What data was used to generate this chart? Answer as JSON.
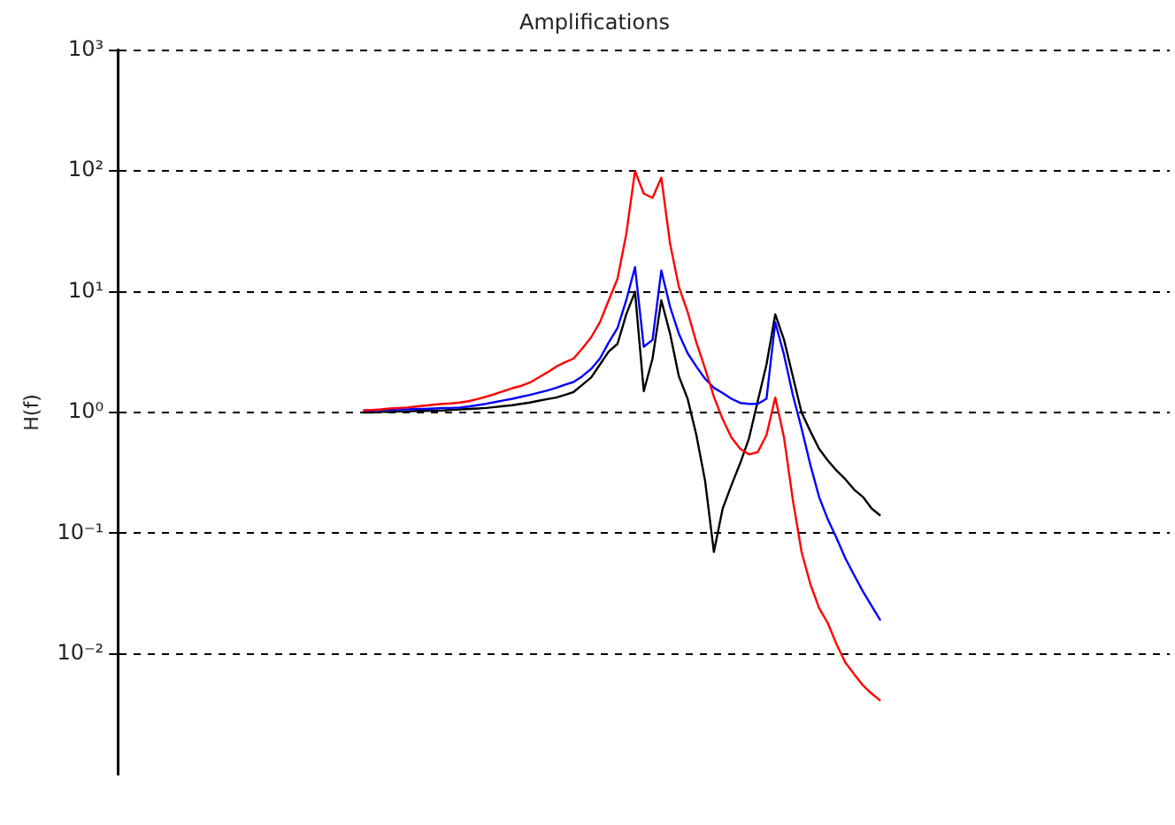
{
  "chart_data": {
    "type": "line",
    "title": "Amplifications",
    "ylabel": "H(f)",
    "log": "y",
    "grid": "y",
    "legend": false,
    "marker": "none",
    "categories": [
      null,
      null,
      null,
      null,
      null,
      null,
      null,
      null,
      null,
      null,
      null,
      null,
      null,
      null,
      null,
      null,
      null,
      null,
      null,
      null,
      null,
      null,
      null,
      null,
      null,
      null,
      null,
      null,
      null,
      null,
      null,
      null,
      null,
      null,
      null,
      null,
      null,
      null,
      null,
      null,
      null,
      null,
      null,
      null,
      null,
      null,
      null,
      null,
      null,
      null,
      null,
      null,
      null,
      null,
      null,
      null,
      null,
      null,
      null,
      null,
      null,
      null,
      null,
      null,
      null,
      null,
      null,
      null,
      null,
      null,
      null,
      null,
      null,
      null,
      null,
      null,
      null,
      null,
      null,
      null,
      null,
      null,
      null,
      null,
      null,
      null,
      null,
      null,
      null,
      null,
      null,
      null,
      null,
      null,
      null,
      null,
      null,
      null,
      null,
      null,
      null,
      null,
      null,
      null,
      null,
      null,
      null,
      null,
      null,
      null,
      null,
      null,
      null,
      null,
      null,
      null,
      null,
      null,
      null,
      null,
      null
    ],
    "ylim": [
      0.001,
      1000
    ],
    "yticks": [
      {
        "value": 0.01,
        "label": "10⁻²"
      },
      {
        "value": 0.1,
        "label": "10⁻¹"
      },
      {
        "value": 1,
        "label": "10⁰"
      },
      {
        "value": 10,
        "label": "10¹"
      },
      {
        "value": 100,
        "label": "10²"
      },
      {
        "value": 1000,
        "label": "10³"
      }
    ],
    "series": [
      {
        "color": "#ff0000",
        "values": [
          null,
          null,
          null,
          null,
          null,
          null,
          null,
          null,
          null,
          null,
          null,
          null,
          null,
          null,
          null,
          null,
          null,
          null,
          null,
          null,
          null,
          null,
          null,
          null,
          null,
          null,
          null,
          null,
          1.04,
          1.05,
          1.06,
          1.08,
          1.09,
          1.1,
          1.12,
          1.14,
          1.16,
          1.18,
          1.19,
          1.21,
          1.24,
          1.29,
          1.35,
          1.42,
          1.5,
          1.59,
          1.66,
          1.77,
          1.95,
          2.15,
          2.4,
          2.6,
          2.8,
          3.4,
          4.2,
          5.6,
          8.5,
          12.8,
          30,
          100,
          65,
          60,
          88,
          25,
          11,
          6.8,
          3.8,
          2.3,
          1.35,
          0.88,
          0.62,
          0.5,
          0.45,
          0.47,
          0.65,
          1.33,
          0.62,
          0.19,
          0.07,
          0.038,
          0.024,
          0.018,
          0.012,
          0.0085,
          0.0068,
          0.0055,
          0.0047,
          0.0041,
          null,
          null,
          null,
          null,
          null,
          null,
          null,
          null,
          null,
          null,
          null,
          null,
          null,
          null,
          null,
          null,
          null,
          null,
          null,
          null,
          null,
          null,
          null,
          null,
          null,
          null,
          null,
          null,
          null,
          null,
          null,
          null,
          null
        ]
      },
      {
        "color": "#0000ff",
        "values": [
          null,
          null,
          null,
          null,
          null,
          null,
          null,
          null,
          null,
          null,
          null,
          null,
          null,
          null,
          null,
          null,
          null,
          null,
          null,
          null,
          null,
          null,
          null,
          null,
          null,
          null,
          null,
          null,
          1.04,
          1.04,
          1.05,
          1.05,
          1.06,
          1.06,
          1.07,
          1.07,
          1.08,
          1.09,
          1.09,
          1.1,
          1.12,
          1.15,
          1.18,
          1.22,
          1.26,
          1.3,
          1.35,
          1.4,
          1.46,
          1.52,
          1.6,
          1.7,
          1.79,
          2.0,
          2.3,
          2.8,
          3.8,
          5.0,
          8.5,
          16,
          3.5,
          4.0,
          15,
          7.5,
          4.5,
          3.1,
          2.4,
          1.9,
          1.6,
          1.45,
          1.3,
          1.2,
          1.18,
          1.18,
          1.3,
          5.6,
          3.0,
          1.4,
          0.74,
          0.37,
          0.2,
          0.13,
          0.091,
          0.062,
          0.045,
          0.033,
          0.025,
          0.019,
          null,
          null,
          null,
          null,
          null,
          null,
          null,
          null,
          null,
          null,
          null,
          null,
          null,
          null,
          null,
          null,
          null,
          null,
          null,
          null,
          null,
          null,
          null,
          null,
          null,
          null,
          null,
          null,
          null,
          null,
          null,
          null,
          null
        ]
      },
      {
        "color": "#000000",
        "values": [
          null,
          null,
          null,
          null,
          null,
          null,
          null,
          null,
          null,
          null,
          null,
          null,
          null,
          null,
          null,
          null,
          null,
          null,
          null,
          null,
          null,
          null,
          null,
          null,
          null,
          null,
          null,
          null,
          1.0,
          1.0,
          1.01,
          1.01,
          1.02,
          1.02,
          1.03,
          1.03,
          1.04,
          1.04,
          1.05,
          1.06,
          1.07,
          1.08,
          1.09,
          1.11,
          1.13,
          1.15,
          1.18,
          1.21,
          1.25,
          1.29,
          1.33,
          1.4,
          1.48,
          1.7,
          1.95,
          2.5,
          3.2,
          3.7,
          6.5,
          10,
          1.5,
          2.8,
          8.5,
          4.5,
          2.0,
          1.3,
          0.65,
          0.27,
          0.07,
          0.16,
          0.25,
          0.38,
          0.61,
          1.24,
          2.5,
          6.5,
          4.0,
          2.0,
          1.0,
          0.7,
          0.5,
          0.4,
          0.33,
          0.28,
          0.23,
          0.2,
          0.16,
          0.14,
          null,
          null,
          null,
          null,
          null,
          null,
          null,
          null,
          null,
          null,
          null,
          null,
          null,
          null,
          null,
          null,
          null,
          null,
          null,
          null,
          null,
          null,
          null,
          null,
          null,
          null,
          null,
          null,
          null,
          null,
          null,
          null,
          null
        ]
      }
    ]
  }
}
